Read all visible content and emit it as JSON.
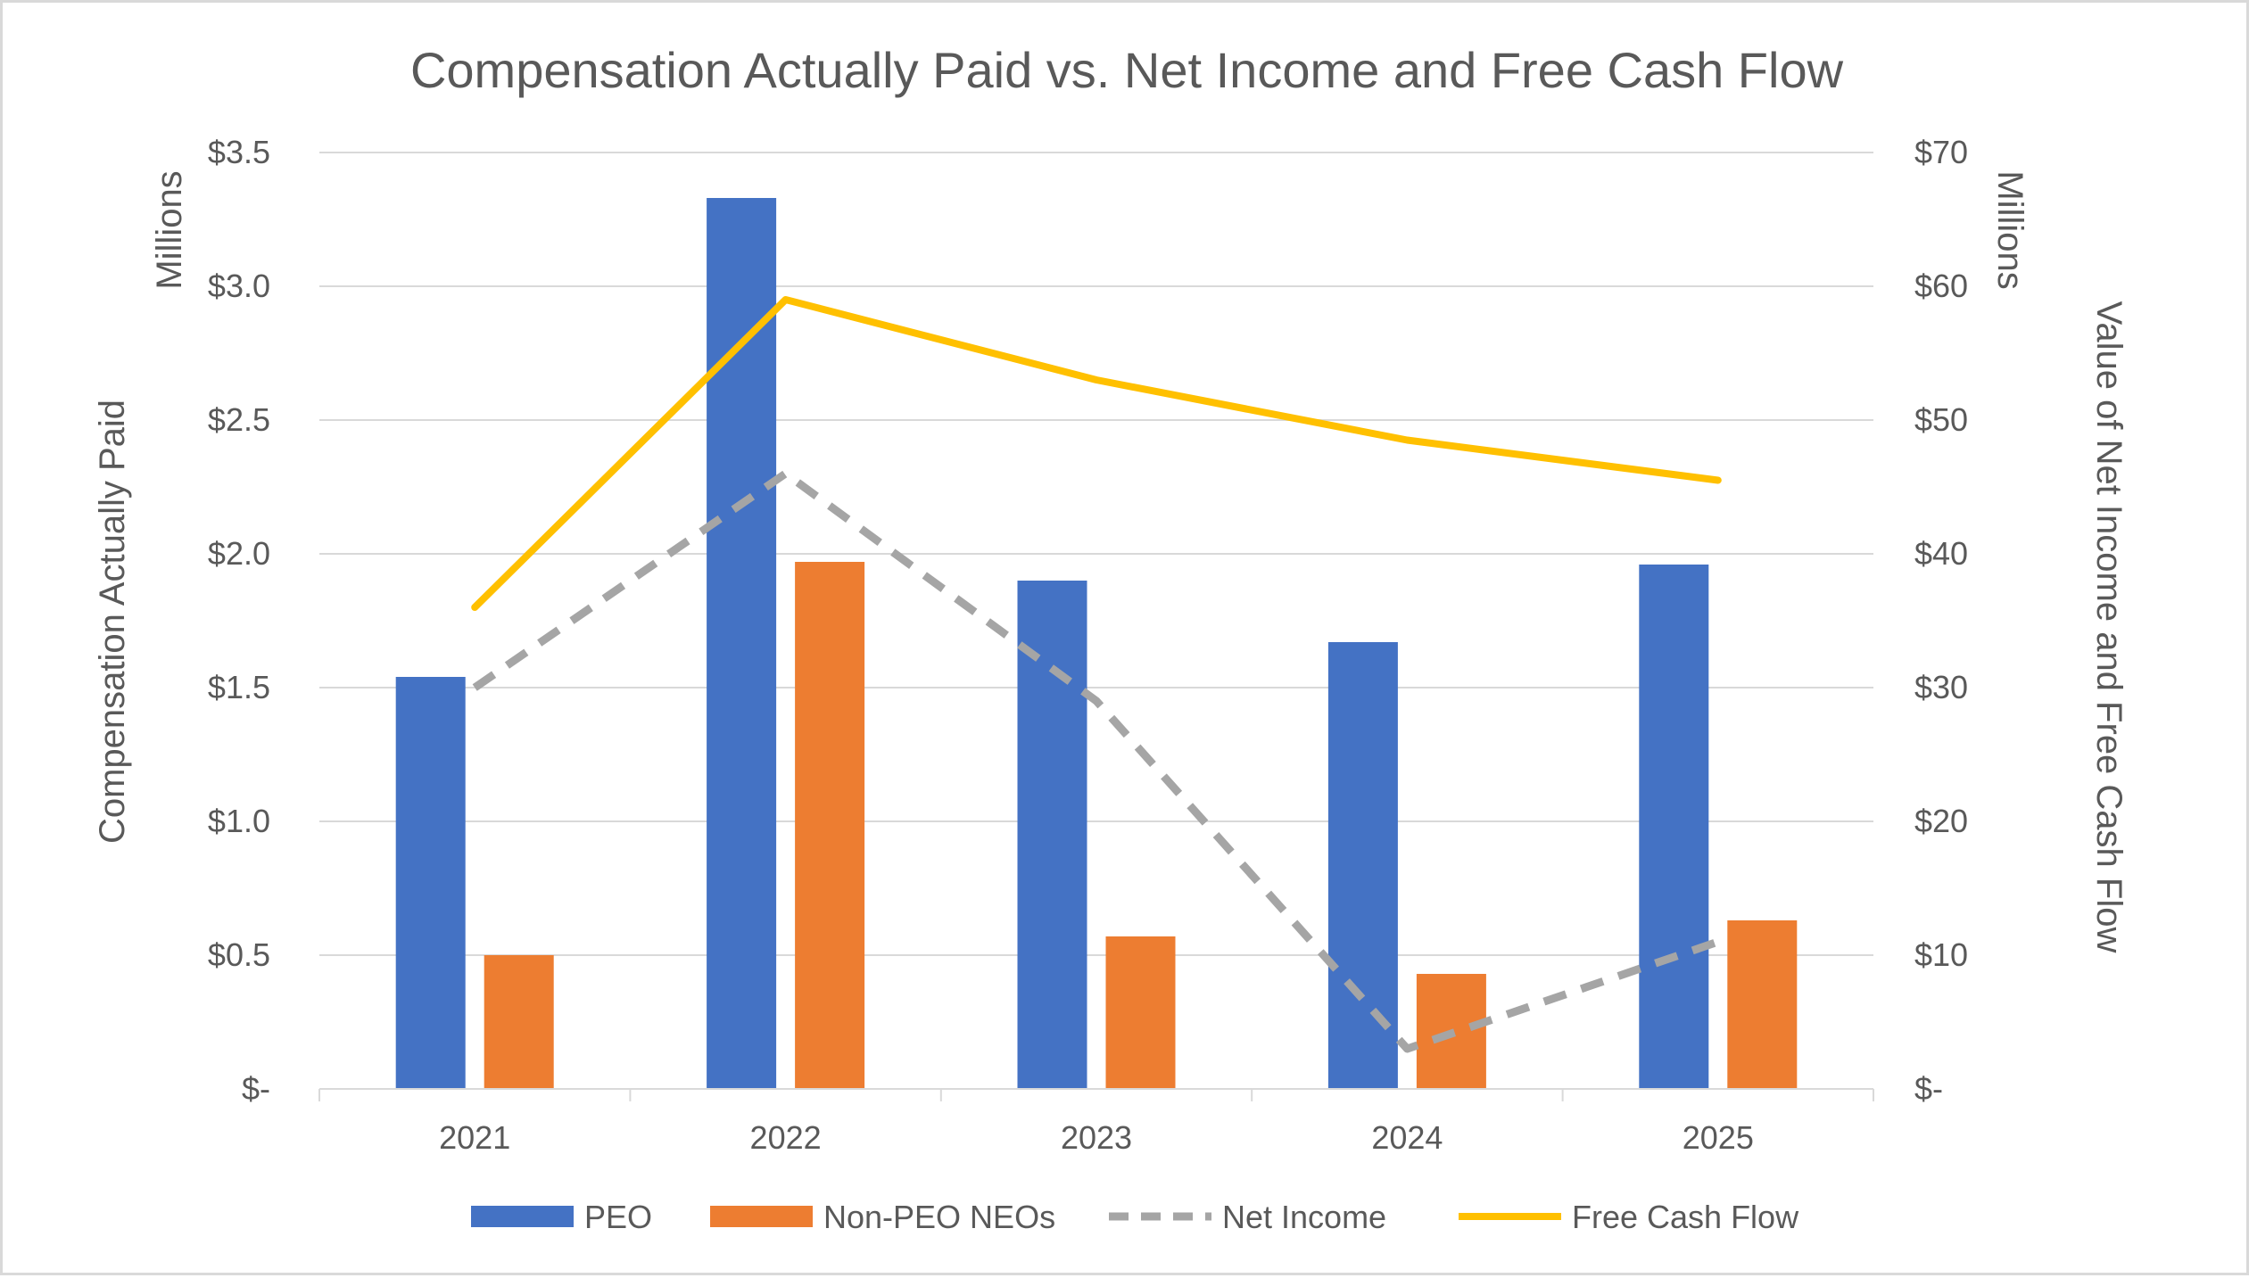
{
  "chart_data": {
    "type": "bar",
    "title": "Compensation Actually Paid vs. Net Income and Free Cash Flow",
    "categories": [
      "2021",
      "2022",
      "2023",
      "2024",
      "2025"
    ],
    "y_left": {
      "label": "Compensation Actually Paid",
      "units_label": "Millions",
      "range": [
        0,
        3.5
      ],
      "ticks": [
        0,
        0.5,
        1.0,
        1.5,
        2.0,
        2.5,
        3.0,
        3.5
      ],
      "tick_labels": [
        "$-",
        "$0.5",
        "$1.0",
        "$1.5",
        "$2.0",
        "$2.5",
        "$3.0",
        "$3.5"
      ]
    },
    "y_right": {
      "label": "Value of Net Income and Free Cash Flow",
      "units_label": "Millions",
      "range": [
        0,
        70
      ],
      "ticks": [
        0,
        10,
        20,
        30,
        40,
        50,
        60,
        70
      ],
      "tick_labels": [
        "$-",
        "$10",
        "$20",
        "$30",
        "$40",
        "$50",
        "$60",
        "$70"
      ]
    },
    "series": [
      {
        "name": "PEO",
        "type": "bar",
        "axis": "left",
        "color": "#4472c4",
        "values": [
          1.54,
          3.33,
          1.9,
          1.67,
          1.96
        ]
      },
      {
        "name": "Non-PEO NEOs",
        "type": "bar",
        "axis": "left",
        "color": "#ed7d31",
        "values": [
          0.5,
          1.97,
          0.57,
          0.43,
          0.63
        ]
      },
      {
        "name": "Net Income",
        "type": "line",
        "style": "dashed",
        "axis": "right",
        "color": "#a5a5a5",
        "values": [
          30,
          46,
          29,
          3,
          11
        ]
      },
      {
        "name": "Free Cash Flow",
        "type": "line",
        "style": "solid",
        "axis": "right",
        "color": "#ffc000",
        "values": [
          36,
          59,
          53,
          48.5,
          45.5
        ]
      }
    ],
    "gridlines": true,
    "legend_position": "bottom"
  }
}
